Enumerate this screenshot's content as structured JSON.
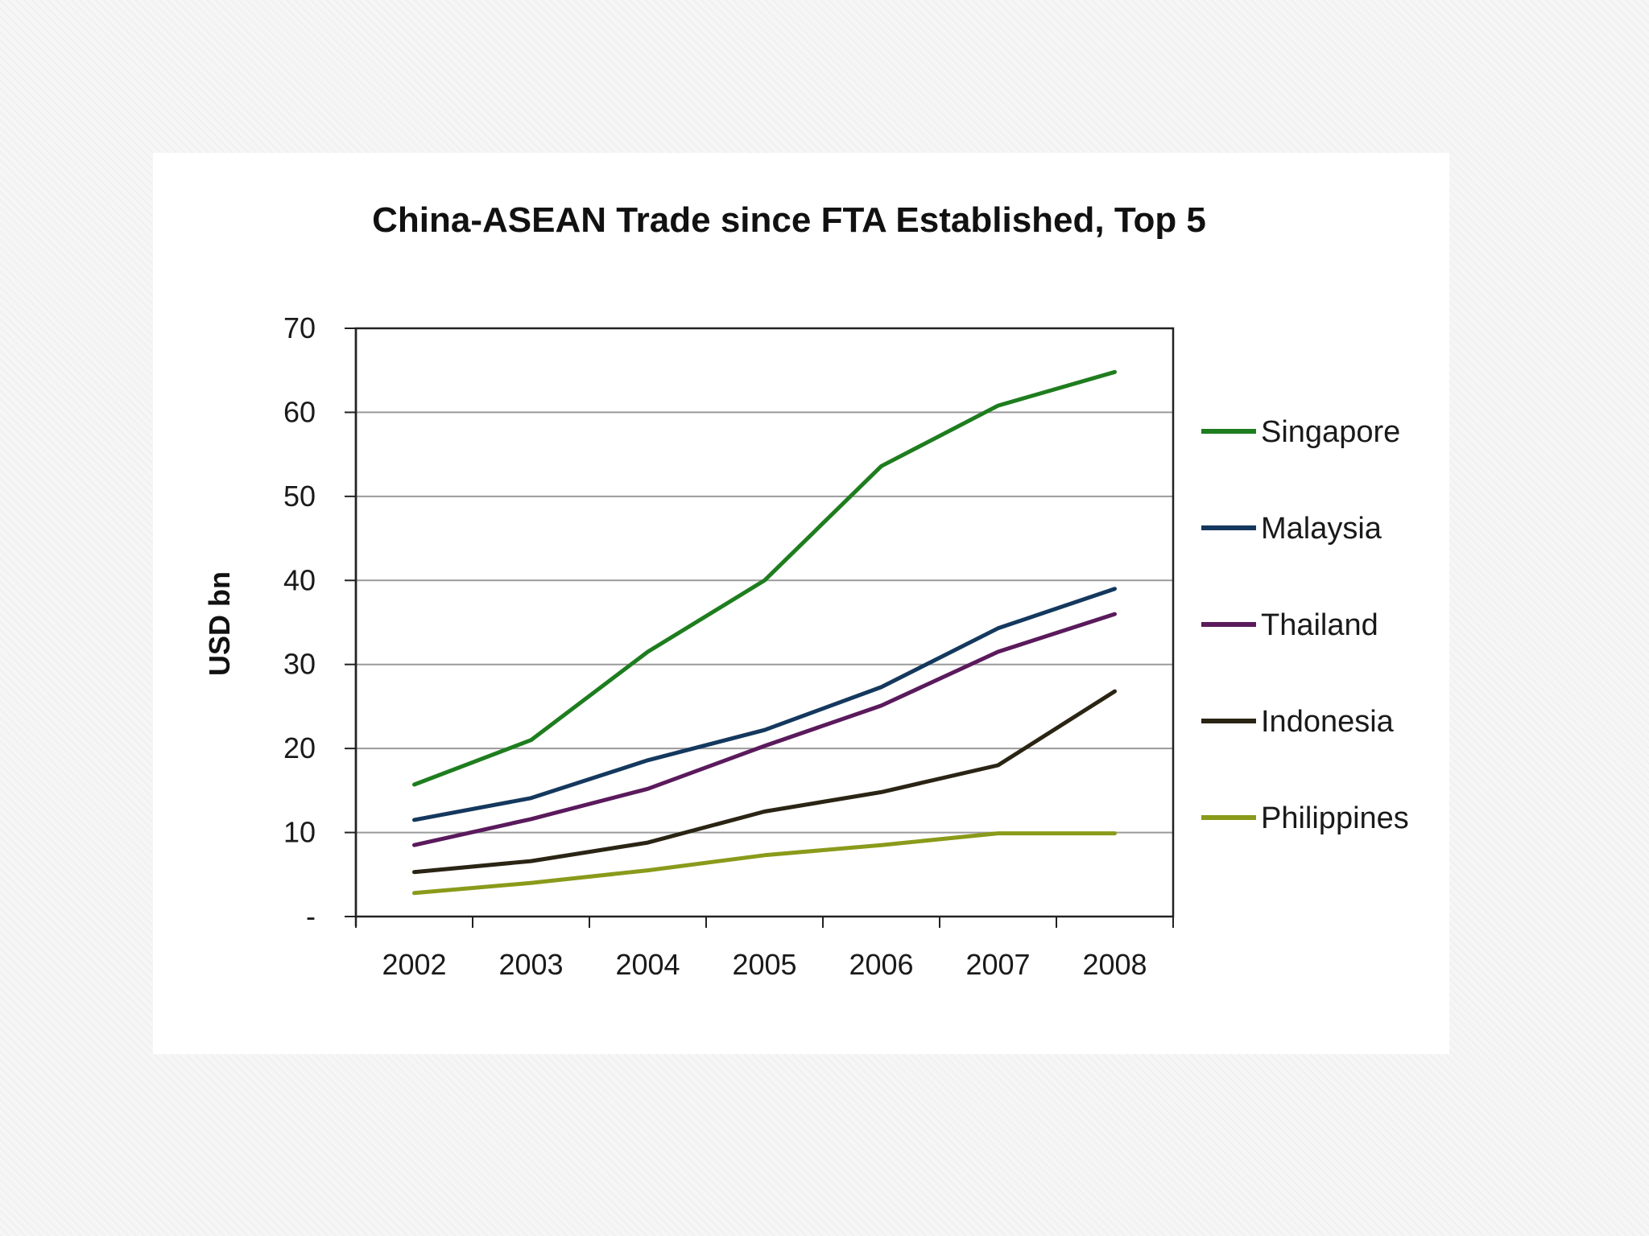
{
  "chart_data": {
    "type": "line",
    "title": "China-ASEAN Trade since FTA Established, Top 5",
    "ylabel": "USD bn",
    "xlabel": "",
    "categories": [
      "2002",
      "2003",
      "2004",
      "2005",
      "2006",
      "2007",
      "2008"
    ],
    "ylim": [
      0,
      70
    ],
    "yticks": [
      {
        "value": 0,
        "label": "-"
      },
      {
        "value": 10,
        "label": "10"
      },
      {
        "value": 20,
        "label": "20"
      },
      {
        "value": 30,
        "label": "30"
      },
      {
        "value": 40,
        "label": "40"
      },
      {
        "value": 50,
        "label": "50"
      },
      {
        "value": 60,
        "label": "60"
      },
      {
        "value": 70,
        "label": "70"
      }
    ],
    "grid": true,
    "legend_position": "right",
    "series": [
      {
        "name": "Singapore",
        "color": "#1e7d1e",
        "values": [
          15.7,
          21.0,
          31.5,
          40.0,
          53.6,
          60.8,
          64.8
        ]
      },
      {
        "name": "Malaysia",
        "color": "#14385e",
        "values": [
          11.5,
          14.1,
          18.6,
          22.2,
          27.3,
          34.3,
          39.0
        ]
      },
      {
        "name": "Thailand",
        "color": "#5a1a5c",
        "values": [
          8.5,
          11.6,
          15.2,
          20.3,
          25.1,
          31.5,
          36.0
        ]
      },
      {
        "name": "Indonesia",
        "color": "#2a2414",
        "values": [
          5.3,
          6.6,
          8.8,
          12.5,
          14.8,
          18.0,
          26.8
        ]
      },
      {
        "name": "Philippines",
        "color": "#8a9a1a",
        "values": [
          2.8,
          4.0,
          5.5,
          7.3,
          8.5,
          9.9,
          9.9
        ]
      }
    ]
  }
}
